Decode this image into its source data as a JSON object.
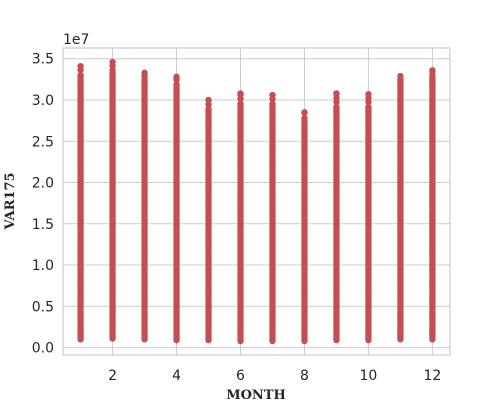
{
  "chart_data": {
    "type": "scatter",
    "xlabel": "MONTH",
    "ylabel": "VAR175",
    "offset_label": "1e7",
    "xlim": [
      0.45,
      12.55
    ],
    "ylim": [
      -0.9,
      36.3
    ],
    "x_ticks": [
      2,
      4,
      6,
      8,
      10,
      12
    ],
    "x_tick_labels": [
      "2",
      "4",
      "6",
      "8",
      "10",
      "12"
    ],
    "y_ticks": [
      0,
      5,
      10,
      15,
      20,
      25,
      30,
      35
    ],
    "y_tick_labels": [
      "0.0",
      "0.5",
      "1.0",
      "1.5",
      "2.0",
      "2.5",
      "3.0",
      "3.5"
    ],
    "grid": true,
    "marker_color": "#c44e52",
    "series": [
      {
        "x": [
          1,
          2,
          3,
          4,
          5,
          6,
          7,
          8,
          9,
          10,
          11,
          12
        ],
        "y_min": [
          1.0,
          1.1,
          1.0,
          0.9,
          0.9,
          0.8,
          0.8,
          0.8,
          0.9,
          0.9,
          1.0,
          1.0
        ],
        "y_dense_max": [
          33.2,
          33.7,
          32.5,
          32.0,
          29.0,
          29.7,
          29.7,
          28.0,
          29.3,
          29.3,
          32.5,
          33.0
        ],
        "y_max": [
          34.1,
          34.6,
          33.3,
          32.8,
          30.0,
          30.8,
          30.6,
          28.5,
          30.8,
          30.7,
          32.9,
          33.6
        ]
      }
    ]
  }
}
